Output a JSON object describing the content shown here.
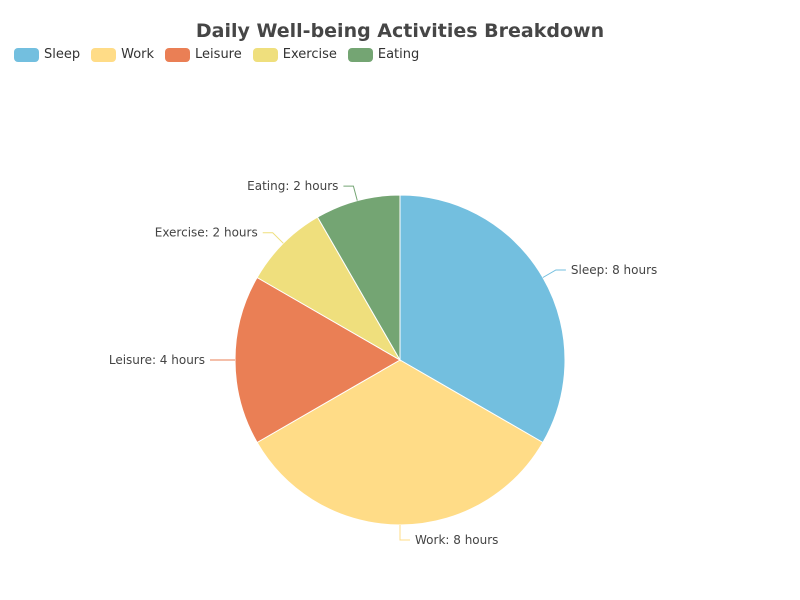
{
  "chart_data": {
    "type": "pie",
    "title": "Daily Well-being Activities Breakdown",
    "legend_position": "top-left",
    "slices": [
      {
        "name": "Sleep",
        "value": 8,
        "unit": "hours",
        "label": "Sleep: 8 hours",
        "color": "#73bfdf"
      },
      {
        "name": "Work",
        "value": 8,
        "unit": "hours",
        "label": "Work: 8 hours",
        "color": "#ffdc87"
      },
      {
        "name": "Leisure",
        "value": 4,
        "unit": "hours",
        "label": "Leisure: 4 hours",
        "color": "#ea7f55"
      },
      {
        "name": "Exercise",
        "value": 2,
        "unit": "hours",
        "label": "Exercise: 2 hours",
        "color": "#efdf7d"
      },
      {
        "name": "Eating",
        "value": 2,
        "unit": "hours",
        "label": "Eating: 2 hours",
        "color": "#74a573"
      }
    ]
  }
}
